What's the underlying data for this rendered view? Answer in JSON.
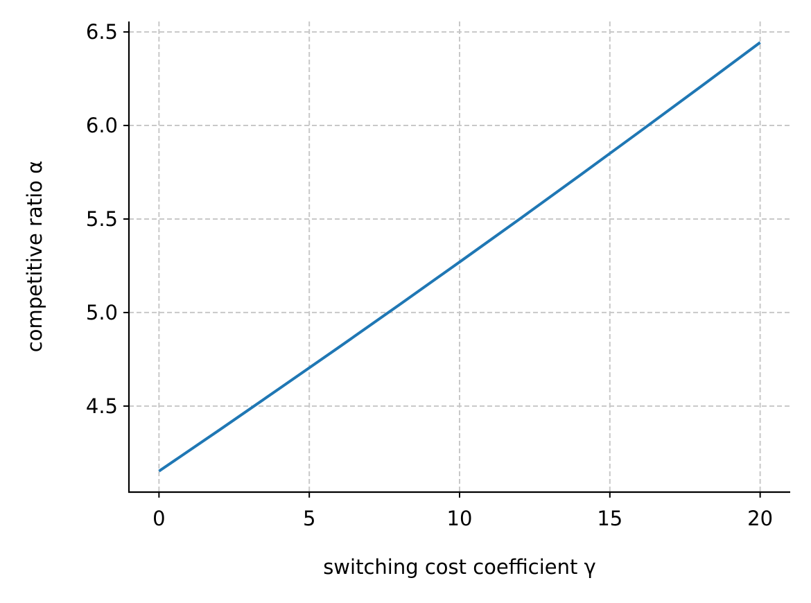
{
  "chart_data": {
    "type": "line",
    "x_label": "switching cost coefficient γ",
    "y_label": "competitive ratio α",
    "x": [
      0,
      2,
      4,
      6,
      8,
      10,
      12,
      14,
      16,
      18,
      20
    ],
    "series": [
      {
        "name": null,
        "color": "#1f77b4",
        "values": [
          4.152,
          4.371,
          4.593,
          4.816,
          5.042,
          5.27,
          5.5,
          5.733,
          5.968,
          6.205,
          6.444
        ]
      }
    ],
    "xlim": [
      -1,
      21
    ],
    "ylim": [
      4.04,
      6.556
    ],
    "xticks": [
      0,
      5,
      10,
      15,
      20
    ],
    "yticks": [
      4.5,
      {
        "value": 5,
        "label": "5.0"
      },
      5.5,
      {
        "value": 6,
        "label": "6.0"
      },
      6.5
    ],
    "grid": true
  }
}
